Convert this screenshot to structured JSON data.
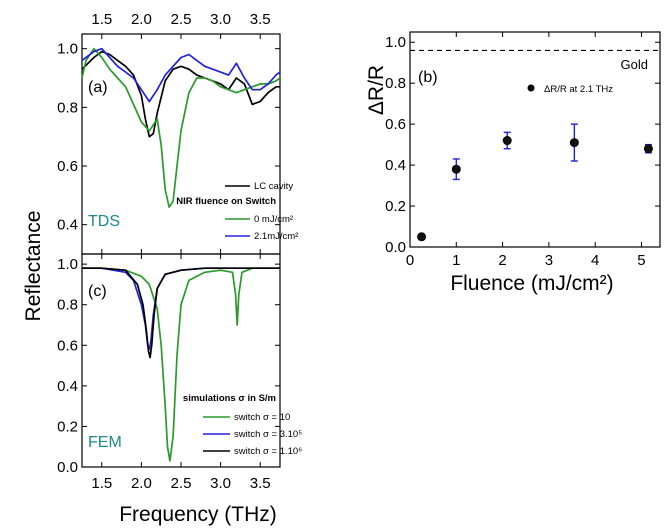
{
  "panel_a": {
    "label": "(a)",
    "tag": "TDS",
    "tag_color": "#1a8a8a",
    "legend_first": "LC cavity",
    "legend_title": "NIR fluence on Switch",
    "legend_items": [
      "0 mJ/cm²",
      "2.1mJ/cm²"
    ]
  },
  "panel_b": {
    "label": "(b)",
    "reference_label": "Gold",
    "legend_item": "ΔR/R at 2.1 THz"
  },
  "panel_c": {
    "label": "(c)",
    "tag": "FEM",
    "tag_color": "#1a8a8a",
    "legend_title": "simulations σ in S/m",
    "legend_items": [
      "switch σ = 10",
      "switch σ = 3.10⁵",
      "switch σ = 1.10⁶"
    ]
  },
  "axes": {
    "left_ylabel": "Reflectance",
    "left_xlabel": "Frequency (THz)",
    "b_ylabel": "ΔR/R",
    "b_xlabel": "Fluence (mJ/cm²)"
  },
  "chart_data": [
    {
      "type": "line",
      "panel": "a",
      "xlim": [
        1.25,
        3.75
      ],
      "ylim": [
        0.3,
        1.05
      ],
      "xticks": [
        1.5,
        2.0,
        2.5,
        3.0,
        3.5
      ],
      "yticks": [
        0.4,
        0.6,
        0.8,
        1.0
      ],
      "series": [
        {
          "name": "LC cavity",
          "color": "#000000",
          "x": [
            1.25,
            1.4,
            1.5,
            1.6,
            1.7,
            1.8,
            1.9,
            2.0,
            2.05,
            2.1,
            2.15,
            2.2,
            2.3,
            2.4,
            2.5,
            2.6,
            2.7,
            2.8,
            2.9,
            3.0,
            3.1,
            3.2,
            3.3,
            3.4,
            3.5,
            3.6,
            3.7,
            3.75
          ],
          "y": [
            0.93,
            0.97,
            0.99,
            0.98,
            0.96,
            0.94,
            0.91,
            0.84,
            0.76,
            0.7,
            0.71,
            0.78,
            0.89,
            0.93,
            0.94,
            0.93,
            0.91,
            0.9,
            0.89,
            0.88,
            0.86,
            0.9,
            0.88,
            0.81,
            0.82,
            0.85,
            0.87,
            0.87
          ]
        },
        {
          "name": "0 mJ/cm²",
          "color": "#2a9a2a",
          "x": [
            1.25,
            1.3,
            1.4,
            1.5,
            1.6,
            1.7,
            1.8,
            1.9,
            2.0,
            2.1,
            2.2,
            2.25,
            2.3,
            2.35,
            2.4,
            2.45,
            2.5,
            2.6,
            2.7,
            2.8,
            2.9,
            3.0,
            3.1,
            3.2,
            3.3,
            3.4,
            3.5,
            3.6,
            3.7,
            3.75
          ],
          "y": [
            0.9,
            0.96,
            1.0,
            0.97,
            0.93,
            0.9,
            0.87,
            0.81,
            0.75,
            0.72,
            0.76,
            0.67,
            0.52,
            0.46,
            0.48,
            0.6,
            0.72,
            0.85,
            0.9,
            0.9,
            0.89,
            0.87,
            0.86,
            0.85,
            0.86,
            0.87,
            0.88,
            0.88,
            0.89,
            0.9
          ]
        },
        {
          "name": "2.1mJ/cm²",
          "color": "#2222dd",
          "x": [
            1.25,
            1.4,
            1.5,
            1.6,
            1.7,
            1.8,
            1.9,
            2.0,
            2.1,
            2.2,
            2.3,
            2.4,
            2.5,
            2.6,
            2.7,
            2.8,
            2.9,
            3.0,
            3.1,
            3.2,
            3.3,
            3.4,
            3.5,
            3.6,
            3.7,
            3.75
          ],
          "y": [
            0.96,
            0.99,
            1.0,
            0.97,
            0.94,
            0.92,
            0.9,
            0.86,
            0.82,
            0.86,
            0.91,
            0.94,
            0.97,
            0.98,
            0.96,
            0.94,
            0.93,
            0.92,
            0.91,
            0.95,
            0.9,
            0.86,
            0.86,
            0.88,
            0.91,
            0.92
          ]
        }
      ]
    },
    {
      "type": "scatter",
      "panel": "b",
      "xlim": [
        0,
        5.4
      ],
      "ylim": [
        0,
        1.05
      ],
      "xticks": [
        0,
        1,
        2,
        3,
        4,
        5
      ],
      "yticks": [
        0.0,
        0.2,
        0.4,
        0.6,
        0.8,
        1.0
      ],
      "reference_line": {
        "y": 0.96,
        "label": "Gold"
      },
      "series": [
        {
          "name": "ΔR/R at 2.1 THz",
          "x": [
            0.25,
            1.0,
            2.1,
            3.55,
            5.15
          ],
          "y": [
            0.05,
            0.38,
            0.52,
            0.51,
            0.48
          ],
          "err": [
            0.01,
            0.05,
            0.04,
            0.09,
            0.02
          ]
        }
      ]
    },
    {
      "type": "line",
      "panel": "c",
      "xlim": [
        1.25,
        3.75
      ],
      "ylim": [
        0.0,
        1.05
      ],
      "xticks": [
        1.5,
        2.0,
        2.5,
        3.0,
        3.5
      ],
      "yticks": [
        0.0,
        0.2,
        0.4,
        0.6,
        0.8,
        1.0
      ],
      "series": [
        {
          "name": "switch σ = 10",
          "color": "#2a9a2a",
          "x": [
            1.25,
            1.5,
            1.8,
            2.0,
            2.1,
            2.2,
            2.25,
            2.3,
            2.33,
            2.36,
            2.4,
            2.45,
            2.5,
            2.6,
            2.8,
            3.0,
            3.15,
            3.19,
            3.21,
            3.23,
            3.27,
            3.4,
            3.6,
            3.75
          ],
          "y": [
            0.98,
            0.98,
            0.97,
            0.94,
            0.9,
            0.78,
            0.6,
            0.3,
            0.1,
            0.03,
            0.15,
            0.55,
            0.8,
            0.92,
            0.96,
            0.97,
            0.96,
            0.85,
            0.7,
            0.85,
            0.96,
            0.98,
            0.98,
            0.98
          ]
        },
        {
          "name": "switch σ = 3.10⁵",
          "color": "#2222dd",
          "x": [
            1.25,
            1.5,
            1.8,
            1.9,
            2.0,
            2.05,
            2.08,
            2.1,
            2.12,
            2.15,
            2.2,
            2.3,
            2.5,
            2.8,
            3.0,
            3.3,
            3.75
          ],
          "y": [
            0.98,
            0.98,
            0.96,
            0.92,
            0.8,
            0.7,
            0.6,
            0.58,
            0.62,
            0.75,
            0.88,
            0.95,
            0.97,
            0.98,
            0.98,
            0.98,
            0.98
          ]
        },
        {
          "name": "switch σ = 1.10⁶",
          "color": "#000000",
          "x": [
            1.25,
            1.5,
            1.8,
            1.95,
            2.02,
            2.06,
            2.09,
            2.11,
            2.13,
            2.16,
            2.2,
            2.3,
            2.5,
            2.8,
            3.0,
            3.3,
            3.75
          ],
          "y": [
            0.98,
            0.98,
            0.97,
            0.9,
            0.8,
            0.68,
            0.57,
            0.54,
            0.6,
            0.75,
            0.88,
            0.95,
            0.97,
            0.98,
            0.98,
            0.98,
            0.98
          ]
        }
      ]
    }
  ]
}
